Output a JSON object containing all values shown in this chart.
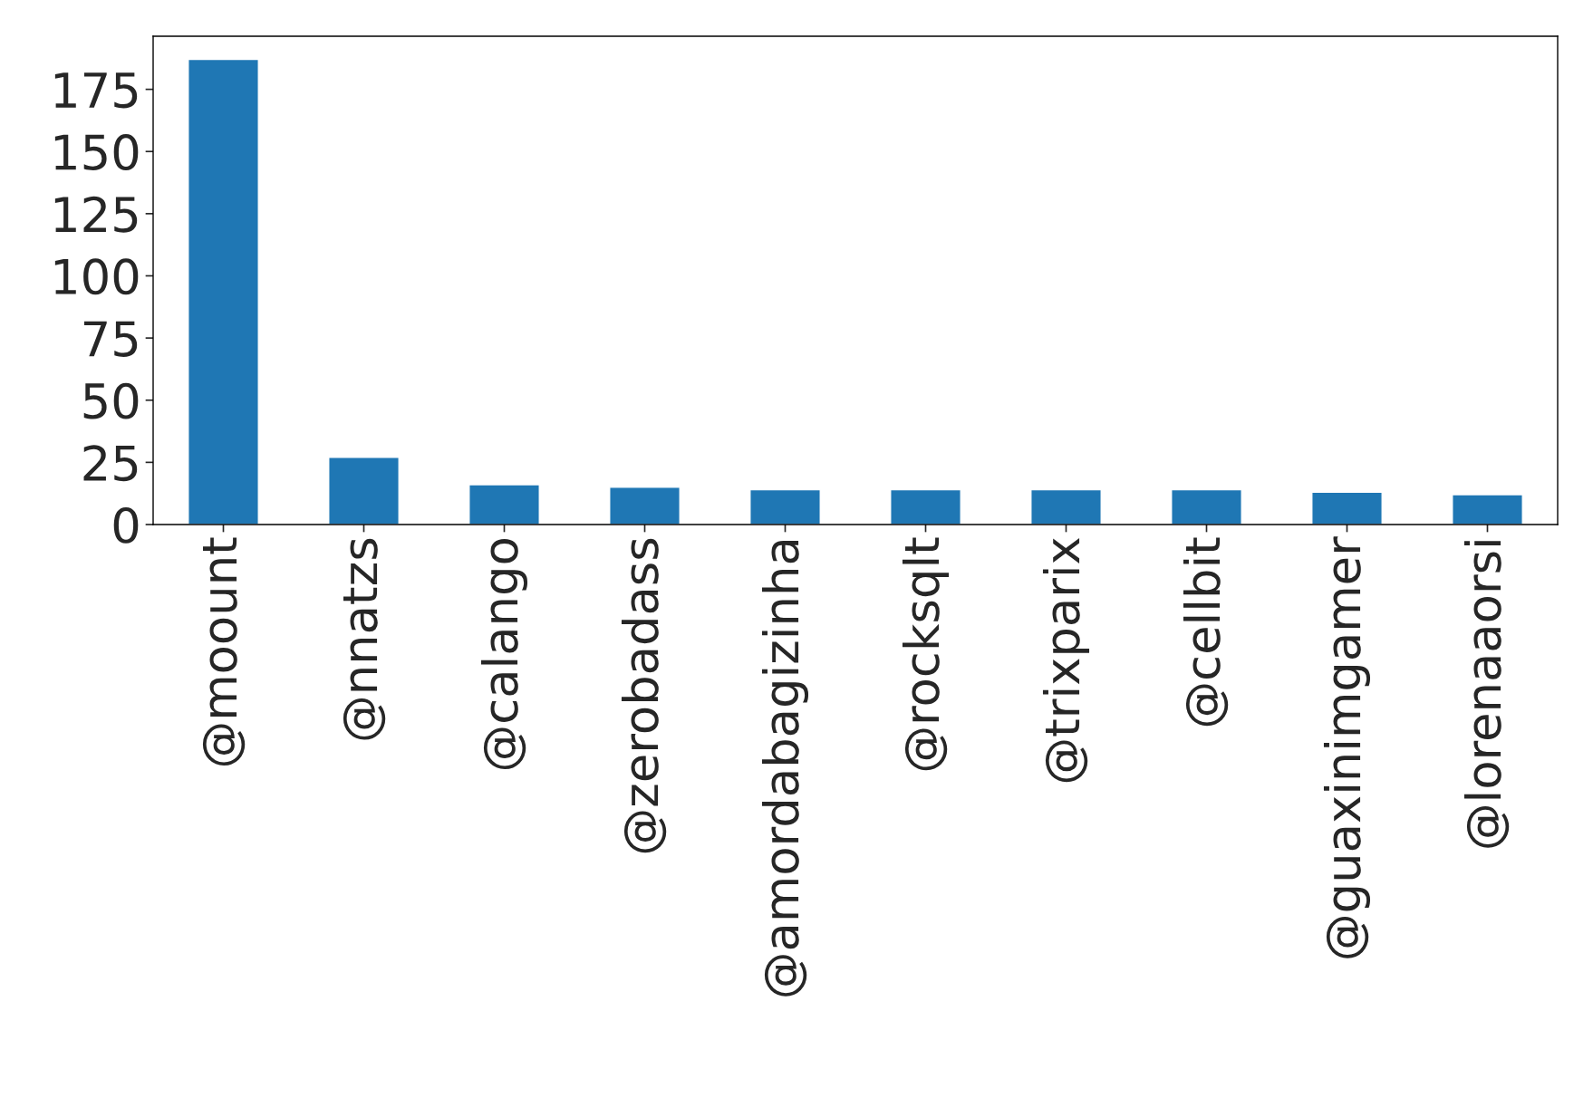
{
  "chart_data": {
    "type": "bar",
    "categories": [
      "@moount",
      "@nnatzs",
      "@calango",
      "@zerobadass",
      "@amordabagizinha",
      "@rocksqlt",
      "@trixparix",
      "@cellbit",
      "@guaxinimgamer",
      "@lorenaaorsi"
    ],
    "values": [
      187,
      27,
      16,
      15,
      14,
      14,
      14,
      14,
      13,
      12
    ],
    "color": "#1f77b4",
    "ylim": [
      0,
      196.35
    ],
    "yticks": [
      0,
      25,
      50,
      75,
      100,
      125,
      150,
      175
    ],
    "grid": false,
    "legend": false
  }
}
